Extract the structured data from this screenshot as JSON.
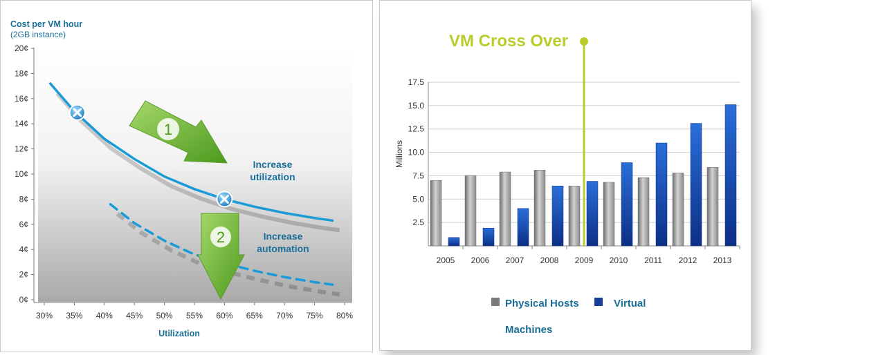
{
  "chart_data": [
    {
      "type": "line",
      "title": "Cost per VM hour",
      "subtitle": "(2GB instance)",
      "xlabel": "Utilization",
      "x_ticks": [
        "30%",
        "35%",
        "40%",
        "45%",
        "50%",
        "55%",
        "60%",
        "65%",
        "70%",
        "75%",
        "80%"
      ],
      "y_ticks": [
        "0¢",
        "2¢",
        "4¢",
        "6¢",
        "8¢",
        "10¢",
        "12¢",
        "14¢",
        "16¢",
        "18¢",
        "20¢"
      ],
      "xlim": [
        30,
        80
      ],
      "ylim": [
        0,
        20
      ],
      "grid": false,
      "series": [
        {
          "style": "solid",
          "color": "#1a9ad6",
          "x": [
            31,
            35,
            40,
            45,
            50,
            55,
            60,
            65,
            70,
            75,
            78
          ],
          "y": [
            17.2,
            15.0,
            12.8,
            11.2,
            9.8,
            8.8,
            8.0,
            7.4,
            6.9,
            6.5,
            6.3
          ]
        },
        {
          "style": "dashed",
          "color": "#1a9ad6",
          "x": [
            41,
            45,
            50,
            55,
            60,
            65,
            70,
            75,
            78
          ],
          "y": [
            7.6,
            6.1,
            4.7,
            3.6,
            2.9,
            2.3,
            1.8,
            1.4,
            1.2
          ]
        }
      ],
      "markers": [
        {
          "x": 35.5,
          "y": 14.9
        },
        {
          "x": 60,
          "y": 8.0
        }
      ],
      "annotations": [
        {
          "number": "1",
          "text_line1": "Increase",
          "text_line2": "utilization"
        },
        {
          "number": "2",
          "text_line1": "Increase",
          "text_line2": "automation"
        }
      ]
    },
    {
      "type": "bar",
      "title": "VM Cross Over",
      "ylabel": "Millions",
      "categories": [
        "2005",
        "2006",
        "2007",
        "2008",
        "2009",
        "2010",
        "2011",
        "2012",
        "2013"
      ],
      "y_ticks": [
        "2.5",
        "5.0",
        "7.5",
        "10.0",
        "12.5",
        "15.0",
        "17.5"
      ],
      "ylim": [
        0,
        17.5
      ],
      "grid": true,
      "crossover_year": "2009",
      "series": [
        {
          "name": "Physical Hosts",
          "color": "#8c8c8c",
          "values": [
            7.0,
            7.5,
            7.9,
            8.1,
            6.4,
            6.8,
            7.3,
            7.8,
            8.4
          ]
        },
        {
          "name": "Virtual",
          "color": "#1f5fc8",
          "values": [
            0.9,
            1.9,
            4.0,
            6.4,
            6.9,
            8.9,
            11.0,
            13.1,
            15.1
          ]
        }
      ],
      "legend_extra": "Machines",
      "legend_position": "bottom"
    }
  ]
}
